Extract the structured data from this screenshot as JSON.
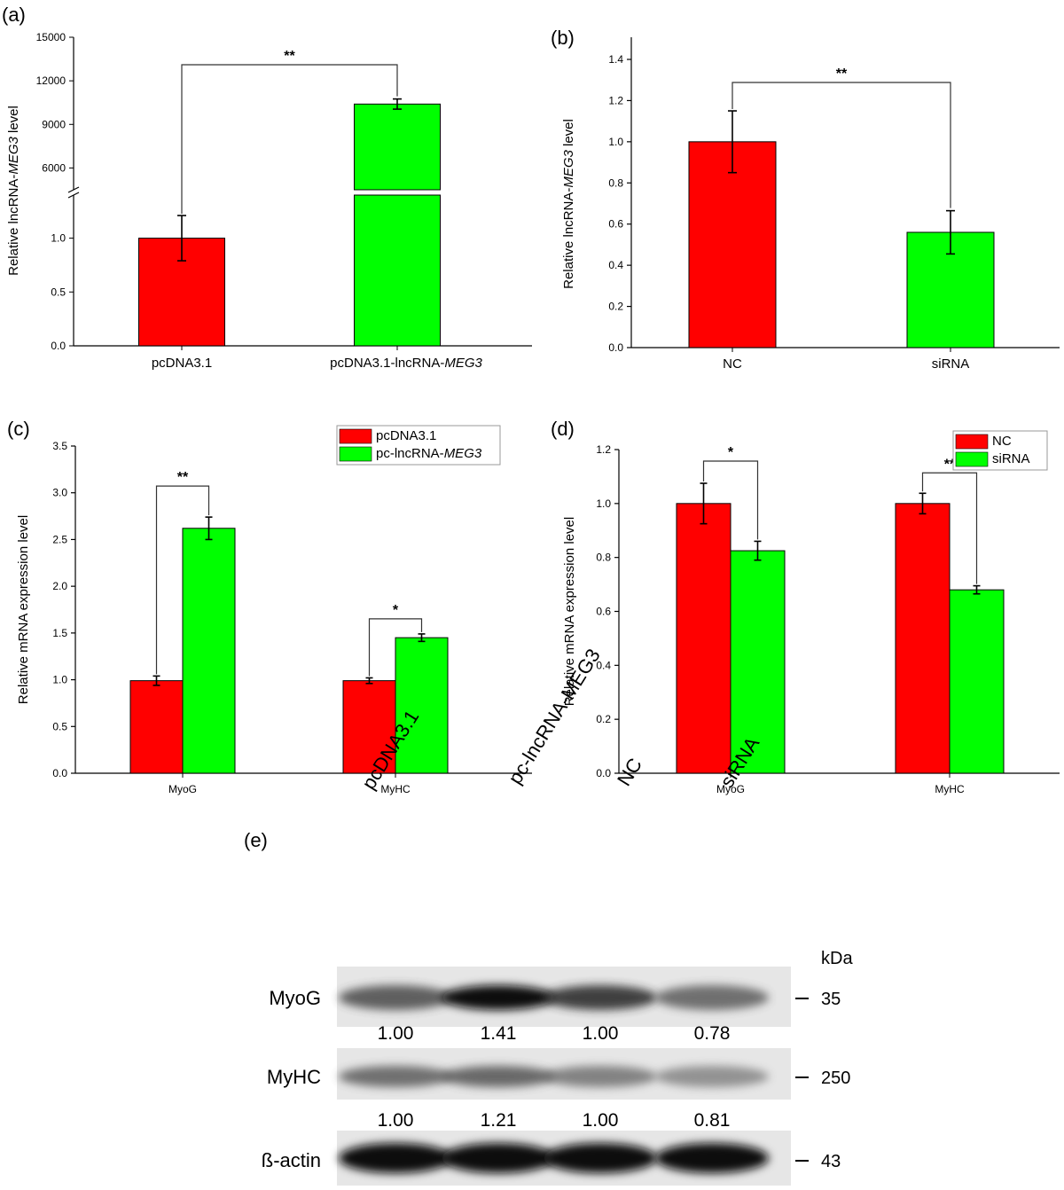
{
  "colors": {
    "red": "#ff0000",
    "green": "#00ff00",
    "bar_stroke": "#000000"
  },
  "panels": [
    {
      "letter": "(a)",
      "chart_data": {
        "type": "bar",
        "categories": [
          "pcDNA3.1",
          "pcDNA3.1-lncRNA-MEG3"
        ],
        "category_parts": [
          [
            {
              "t": "pcDNA3.1",
              "i": false
            }
          ],
          [
            {
              "t": "pcDNA3.1-lncRNA-",
              "i": false
            },
            {
              "t": "MEG3",
              "i": true
            }
          ]
        ],
        "values": [
          1.0,
          10400
        ],
        "errors": [
          0.21,
          350
        ],
        "colors": [
          "#ff0000",
          "#00ff00"
        ],
        "ylabel_parts": [
          {
            "t": "Relative lncRNA-",
            "i": false
          },
          {
            "t": "MEG3",
            "i": true
          },
          {
            "t": " level",
            "i": false
          }
        ],
        "axis_break": true,
        "ylim_lower": [
          0,
          1.4
        ],
        "ylim_upper": [
          4500,
          15000
        ],
        "yticks_lower": [
          "0.0",
          "0.5",
          "1.0"
        ],
        "yticks_upper": [
          "6000",
          "9000",
          "12000",
          "15000"
        ],
        "significance": [
          {
            "between": [
              0,
              1
            ],
            "label": "**"
          }
        ]
      }
    },
    {
      "letter": "(b)",
      "chart_data": {
        "type": "bar",
        "categories": [
          "NC",
          "siRNA"
        ],
        "values": [
          1.0,
          0.56
        ],
        "errors": [
          0.15,
          0.105
        ],
        "colors": [
          "#ff0000",
          "#00ff00"
        ],
        "ylabel_parts": [
          {
            "t": "Relative lncRNA-",
            "i": false
          },
          {
            "t": "MEG3",
            "i": true
          },
          {
            "t": " level",
            "i": false
          }
        ],
        "ylim": [
          0,
          1.4
        ],
        "yticks": [
          "0.0",
          "0.2",
          "0.4",
          "0.6",
          "0.8",
          "1.0",
          "1.2",
          "1.4"
        ],
        "significance": [
          {
            "between": [
              0,
              1
            ],
            "label": "**"
          }
        ]
      }
    },
    {
      "letter": "(c)",
      "chart_data": {
        "type": "bar",
        "categories": [
          "MyoG",
          "MyHC"
        ],
        "series": [
          {
            "name": "pcDNA3.1",
            "values": [
              0.99,
              0.99
            ],
            "errors": [
              0.05,
              0.03
            ],
            "color": "#ff0000"
          },
          {
            "name": "pc-lncRNA-MEG3",
            "values": [
              2.62,
              1.45
            ],
            "errors": [
              0.12,
              0.04
            ],
            "color": "#00ff00"
          }
        ],
        "legend_parts": [
          [
            {
              "t": "pcDNA3.1",
              "i": false
            }
          ],
          [
            {
              "t": "pc-lncRNA-",
              "i": false
            },
            {
              "t": "MEG3",
              "i": true
            }
          ]
        ],
        "legend_position": "top-right",
        "ylabel": "Relative mRNA expression level",
        "ylim": [
          0,
          3.5
        ],
        "yticks": [
          "0.0",
          "0.5",
          "1.0",
          "1.5",
          "2.0",
          "2.5",
          "3.0",
          "3.5"
        ],
        "significance": [
          {
            "category": 0,
            "label": "**"
          },
          {
            "category": 1,
            "label": "*"
          }
        ]
      }
    },
    {
      "letter": "(d)",
      "chart_data": {
        "type": "bar",
        "categories": [
          "MyoG",
          "MyHC"
        ],
        "series": [
          {
            "name": "NC",
            "values": [
              1.0,
              1.0
            ],
            "errors": [
              0.075,
              0.038
            ],
            "color": "#ff0000"
          },
          {
            "name": "siRNA",
            "values": [
              0.825,
              0.68
            ],
            "errors": [
              0.035,
              0.015
            ],
            "color": "#00ff00"
          }
        ],
        "legend_parts": [
          [
            {
              "t": "NC",
              "i": false
            }
          ],
          [
            {
              "t": "siRNA",
              "i": false
            }
          ]
        ],
        "legend_position": "top-right",
        "ylabel": "Relative mRNA expression level",
        "ylim": [
          0,
          1.2
        ],
        "yticks": [
          "0.0",
          "0.2",
          "0.4",
          "0.6",
          "0.8",
          "1.0",
          "1.2"
        ],
        "significance": [
          {
            "category": 0,
            "label": "*"
          },
          {
            "category": 1,
            "label": "**"
          }
        ]
      }
    }
  ],
  "blot": {
    "letter": "(e)",
    "lanes": [
      "pcDNA3.1",
      "pc-lncRNA-MEG3",
      "NC",
      "siRNA"
    ],
    "kda_label": "kDa",
    "rows": [
      {
        "label": "MyoG",
        "kda": "35",
        "intensity": [
          0.55,
          1.0,
          0.75,
          0.45
        ],
        "quant": [
          "1.00",
          "1.41",
          "1.00",
          "0.78"
        ]
      },
      {
        "label": "MyHC",
        "kda": "250",
        "intensity": [
          0.45,
          0.5,
          0.32,
          0.2
        ],
        "quant": [
          "1.00",
          "1.21",
          "1.00",
          "0.81"
        ]
      },
      {
        "label": "ß-actin",
        "kda": "43",
        "intensity": [
          1.0,
          1.0,
          1.0,
          1.0
        ]
      }
    ]
  }
}
